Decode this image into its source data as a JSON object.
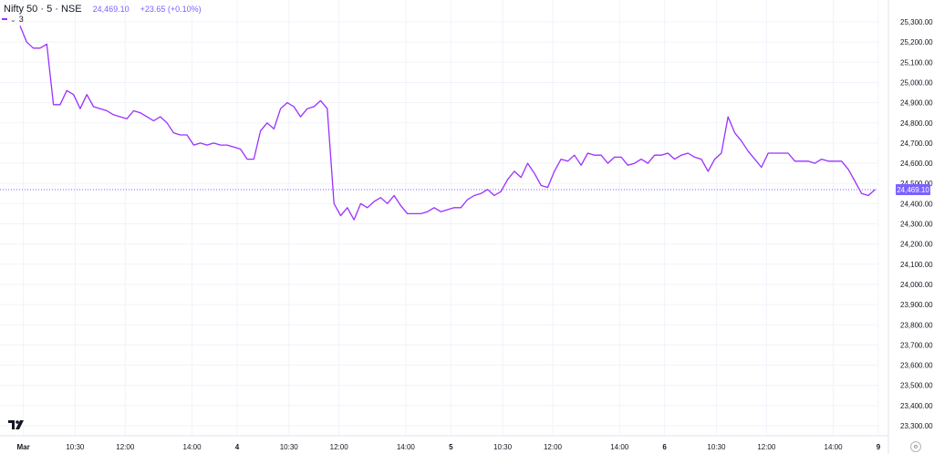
{
  "header": {
    "symbol": "Nifty 50 · 5 · NSE",
    "last_price": "24,469.10",
    "change": "+23.65 (+0.10%)"
  },
  "indicator": {
    "label": "3",
    "chevron_icon": "chevron-down-icon"
  },
  "logo_icon": "tradingview-logo-icon",
  "settings_icon": "gear-icon",
  "colors": {
    "line": "#9b30ff",
    "price_label_bg": "#7b61ff",
    "grid": "#f0f3fa",
    "axis_text": "#131722"
  },
  "chart_data": {
    "type": "line",
    "y_ticks": [
      "25,300.00",
      "25,200.00",
      "25,100.00",
      "25,000.00",
      "24,900.00",
      "24,800.00",
      "24,700.00",
      "24,600.00",
      "24,500.00",
      "24,400.00",
      "24,300.00",
      "24,200.00",
      "24,100.00",
      "24,000.00",
      "23,900.00",
      "23,800.00",
      "23,700.00",
      "23,600.00",
      "23,500.00",
      "23,400.00",
      "23,300.00"
    ],
    "ylim": [
      23300,
      25300
    ],
    "x_ticks": [
      "Mar",
      "10:30",
      "12:00",
      "14:00",
      "4",
      "10:30",
      "12:00",
      "14:00",
      "5",
      "10:30",
      "12:00",
      "14:00",
      "6",
      "10:30",
      "12:00",
      "14:00",
      "9"
    ],
    "x_tick_pos": [
      0.5,
      8.25,
      15.75,
      25.75,
      32.5,
      40.25,
      47.75,
      57.75,
      64.5,
      72.25,
      79.75,
      89.75,
      96.5,
      104.25,
      111.75,
      121.75,
      128.5
    ],
    "xlim": [
      -3,
      128.5
    ],
    "current_price": 24469.1,
    "current_price_label": "24,469.10",
    "series": [
      {
        "values": [
          25280,
          25200,
          25170,
          25170,
          25190,
          24890,
          24890,
          24960,
          24940,
          24870,
          24940,
          24880,
          24870,
          24860,
          24840,
          24830,
          24820,
          24860,
          24850,
          24830,
          24810,
          24830,
          24800,
          24750,
          24740,
          24740,
          24690,
          24700,
          24690,
          24700,
          24690,
          24690,
          24680,
          24670,
          24620,
          24620,
          24760,
          24800,
          24770,
          24870,
          24900,
          24880,
          24830,
          24870,
          24880,
          24910,
          24870,
          24400,
          24340,
          24380,
          24320,
          24400,
          24380,
          24410,
          24430,
          24400,
          24440,
          24390,
          24350,
          24350,
          24350,
          24360,
          24380,
          24360,
          24370,
          24380,
          24380,
          24420,
          24440,
          24450,
          24470,
          24440,
          24460,
          24520,
          24560,
          24530,
          24600,
          24550,
          24490,
          24480,
          24560,
          24620,
          24610,
          24640,
          24590,
          24650,
          24640,
          24640,
          24600,
          24630,
          24630,
          24590,
          24600,
          24620,
          24600,
          24640,
          24640,
          24650,
          24620,
          24640,
          24650,
          24630,
          24620,
          24560,
          24620,
          24650,
          24830,
          24750,
          24710,
          24660,
          24620,
          24580,
          24650,
          24650,
          24650,
          24650,
          24610,
          24610,
          24610,
          24600,
          24620,
          24610,
          24610,
          24610,
          24570,
          24510,
          24450,
          24440,
          24469.1
        ]
      }
    ]
  }
}
